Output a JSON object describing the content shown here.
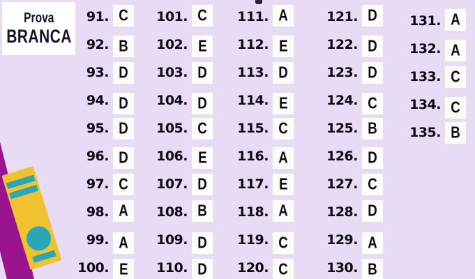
{
  "title": {
    "line1": "Prova",
    "line2": "BRANCA"
  },
  "answer_key": {
    "columns": [
      {
        "range": "91-100",
        "items": [
          {
            "n": "91.",
            "a": "C"
          },
          {
            "n": "92.",
            "a": "B"
          },
          {
            "n": "93.",
            "a": "D"
          },
          {
            "n": "94.",
            "a": "D"
          },
          {
            "n": "95.",
            "a": "D"
          },
          {
            "n": "96.",
            "a": "D"
          },
          {
            "n": "97.",
            "a": "C"
          },
          {
            "n": "98.",
            "a": "A"
          },
          {
            "n": "99.",
            "a": "A"
          },
          {
            "n": "100.",
            "a": "E"
          }
        ]
      },
      {
        "range": "101-110",
        "items": [
          {
            "n": "101.",
            "a": "C"
          },
          {
            "n": "102.",
            "a": "E"
          },
          {
            "n": "103.",
            "a": "D"
          },
          {
            "n": "104.",
            "a": "D"
          },
          {
            "n": "105.",
            "a": "C"
          },
          {
            "n": "106.",
            "a": "E"
          },
          {
            "n": "107.",
            "a": "D"
          },
          {
            "n": "108.",
            "a": "B"
          },
          {
            "n": "109.",
            "a": "D"
          },
          {
            "n": "110.",
            "a": "D"
          }
        ]
      },
      {
        "range": "111-120",
        "items": [
          {
            "n": "111.",
            "a": "A"
          },
          {
            "n": "112.",
            "a": "E"
          },
          {
            "n": "113.",
            "a": "D"
          },
          {
            "n": "114.",
            "a": "E"
          },
          {
            "n": "115.",
            "a": "C"
          },
          {
            "n": "116.",
            "a": "A"
          },
          {
            "n": "117.",
            "a": "E"
          },
          {
            "n": "118.",
            "a": "A"
          },
          {
            "n": "119.",
            "a": "C"
          },
          {
            "n": "120.",
            "a": "C"
          }
        ]
      },
      {
        "range": "121-130",
        "items": [
          {
            "n": "121.",
            "a": "D"
          },
          {
            "n": "122.",
            "a": "D"
          },
          {
            "n": "123.",
            "a": "D"
          },
          {
            "n": "124.",
            "a": "C"
          },
          {
            "n": "125.",
            "a": "B"
          },
          {
            "n": "126.",
            "a": "D"
          },
          {
            "n": "127.",
            "a": "C"
          },
          {
            "n": "128.",
            "a": "D"
          },
          {
            "n": "129.",
            "a": "A"
          },
          {
            "n": "130.",
            "a": "B"
          }
        ]
      },
      {
        "range": "131-135",
        "items": [
          {
            "n": "131.",
            "a": "A"
          },
          {
            "n": "132.",
            "a": "A"
          },
          {
            "n": "133.",
            "a": "C"
          },
          {
            "n": "134.",
            "a": "C"
          },
          {
            "n": "135.",
            "a": "B"
          }
        ]
      }
    ]
  },
  "colors": {
    "background": "#e7dcf4",
    "card": "#fdfcf9",
    "text": "#0f0b16",
    "title_text": "#17112c",
    "book_yellow": "#f0c22f",
    "book_magenta": "#9a148f",
    "book_teal": "#2aa7b5",
    "crop_mark": "#2a2236"
  }
}
